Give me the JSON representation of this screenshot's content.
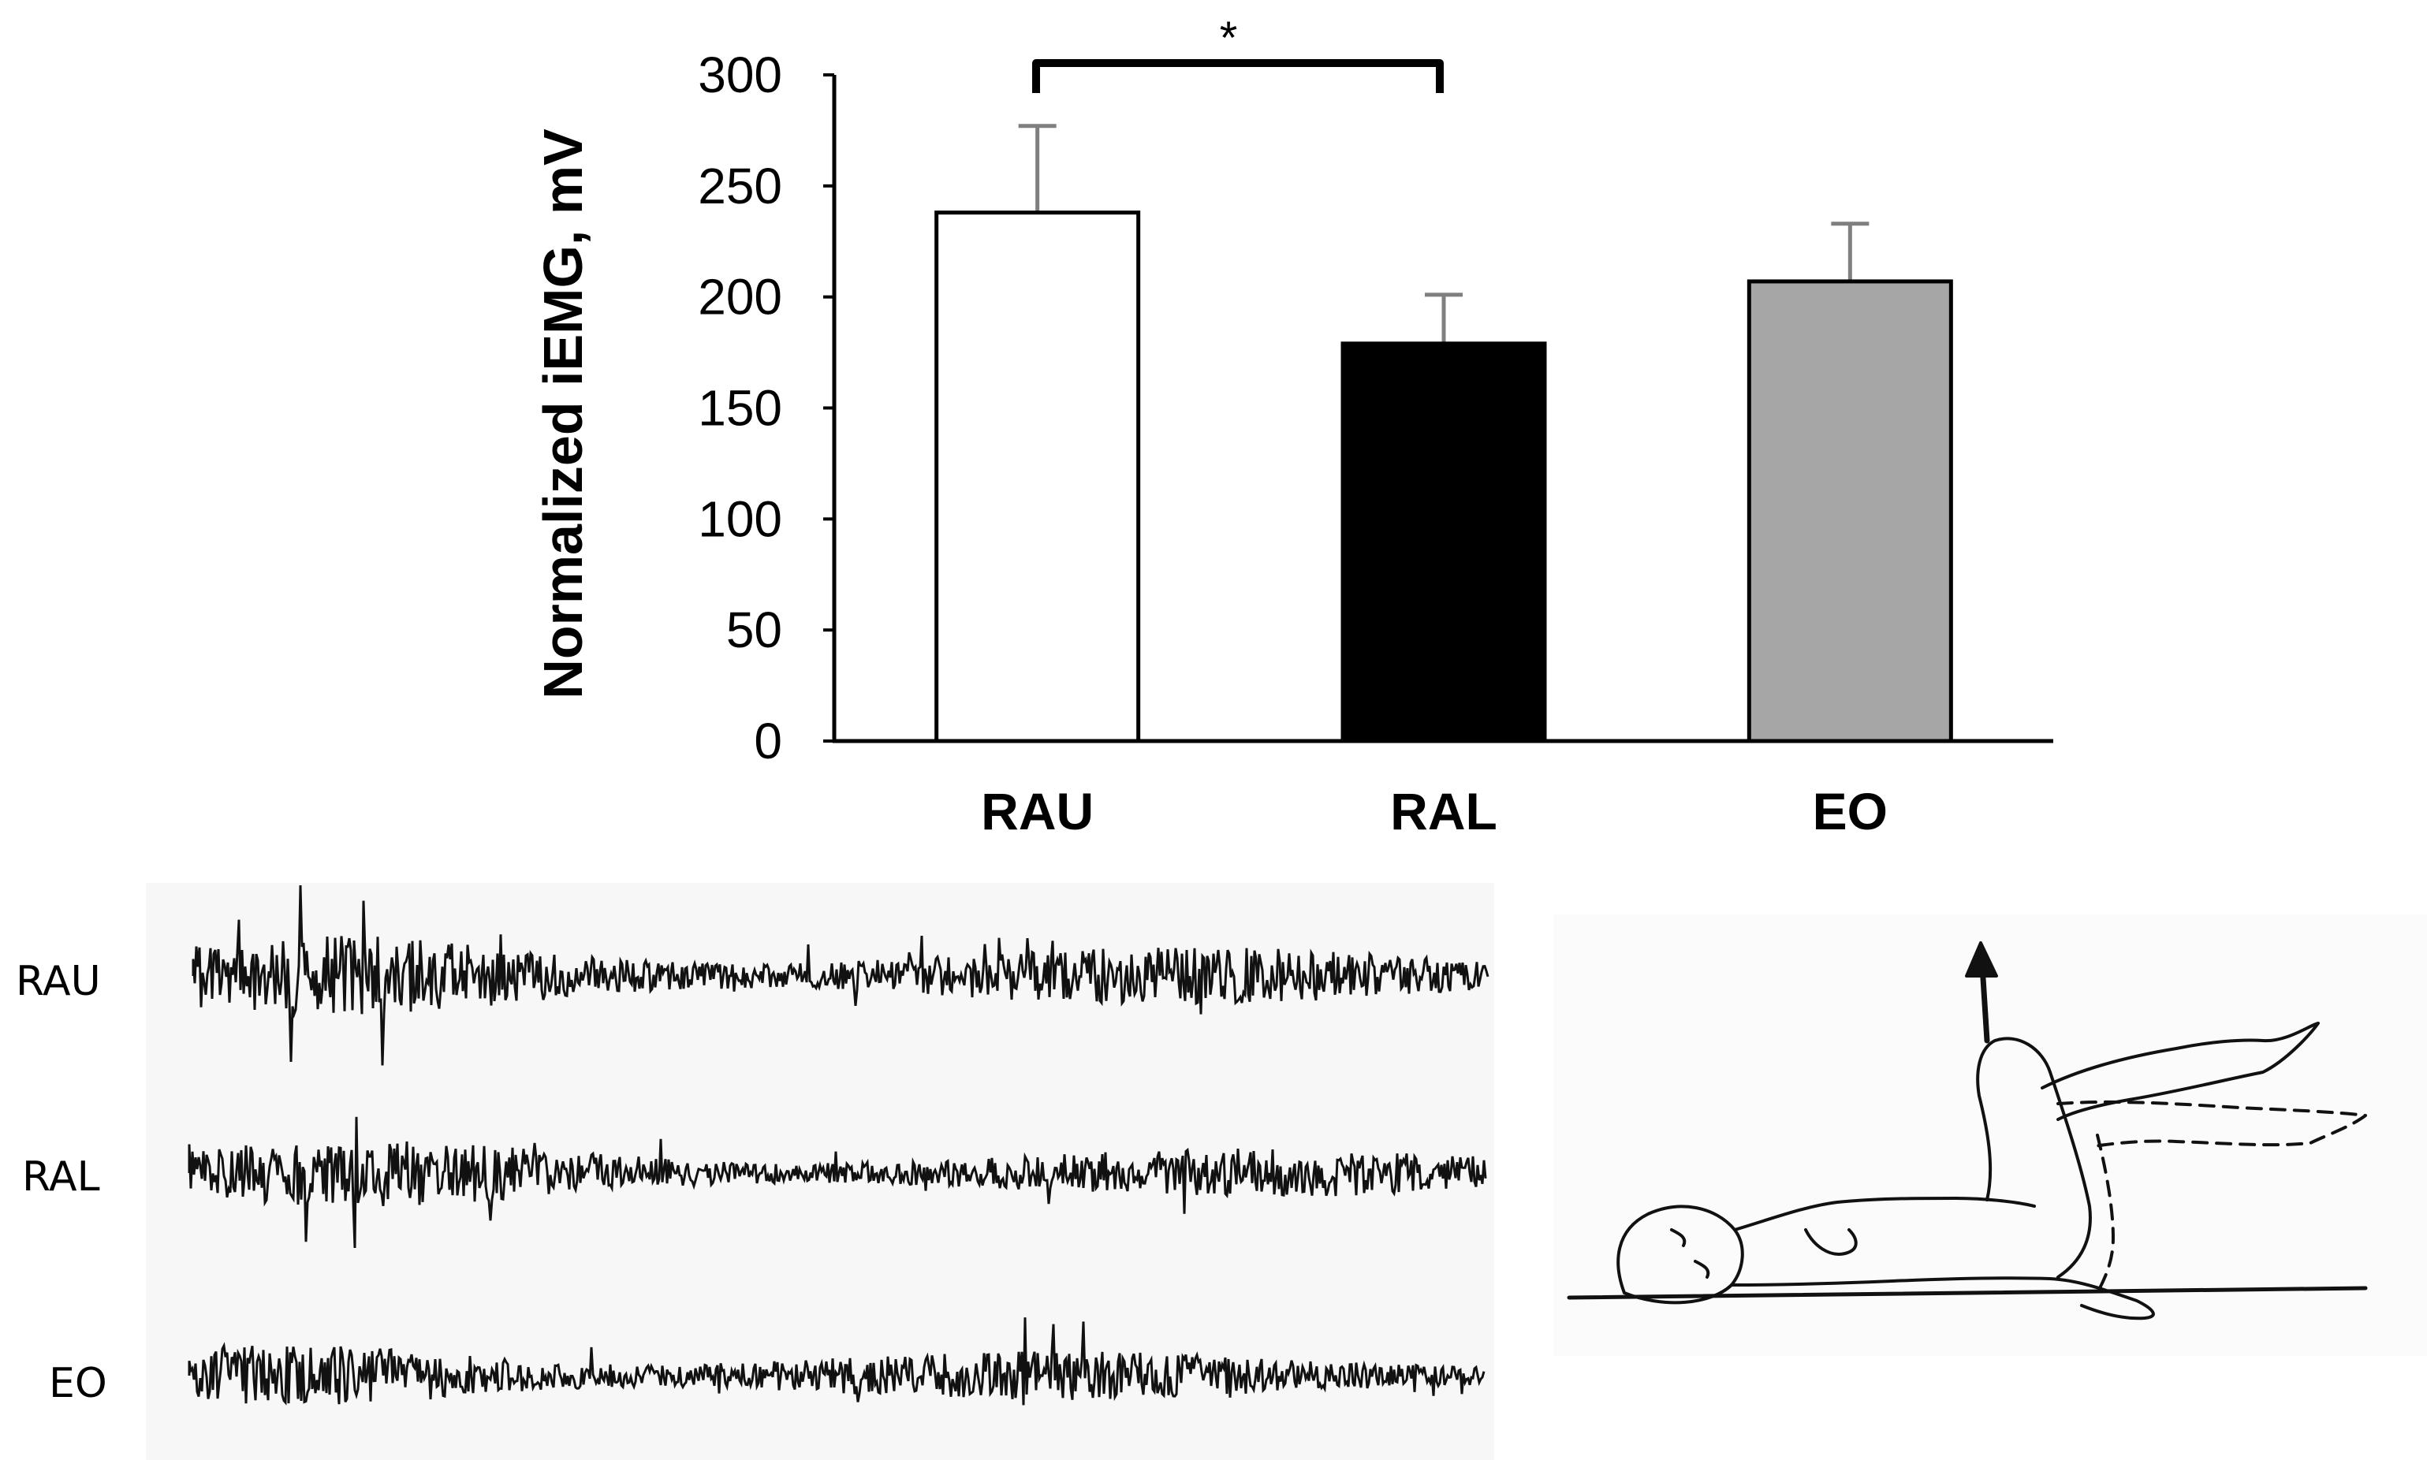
{
  "chart_data": {
    "type": "bar",
    "title": "",
    "xlabel": "",
    "ylabel": "Normalized iEMG, mV",
    "ylim": [
      0,
      300
    ],
    "yticks": [
      0,
      50,
      100,
      150,
      200,
      250,
      300
    ],
    "categories": [
      "RAU",
      "RAL",
      "EO"
    ],
    "values": [
      238,
      179,
      207
    ],
    "errors": [
      39,
      22,
      26
    ],
    "bar_colors": [
      "#ffffff",
      "#000000",
      "#a6a6a6"
    ],
    "error_bar_color": "#7f7f7f",
    "grid": false,
    "legend": "none",
    "significance": {
      "between": [
        "RAU",
        "RAL"
      ],
      "label": "*"
    }
  },
  "emg_traces": {
    "labels": [
      "RAU",
      "RAL",
      "EO"
    ]
  },
  "illustration": {
    "icon": "supine-leg-raise-figure-icon"
  }
}
